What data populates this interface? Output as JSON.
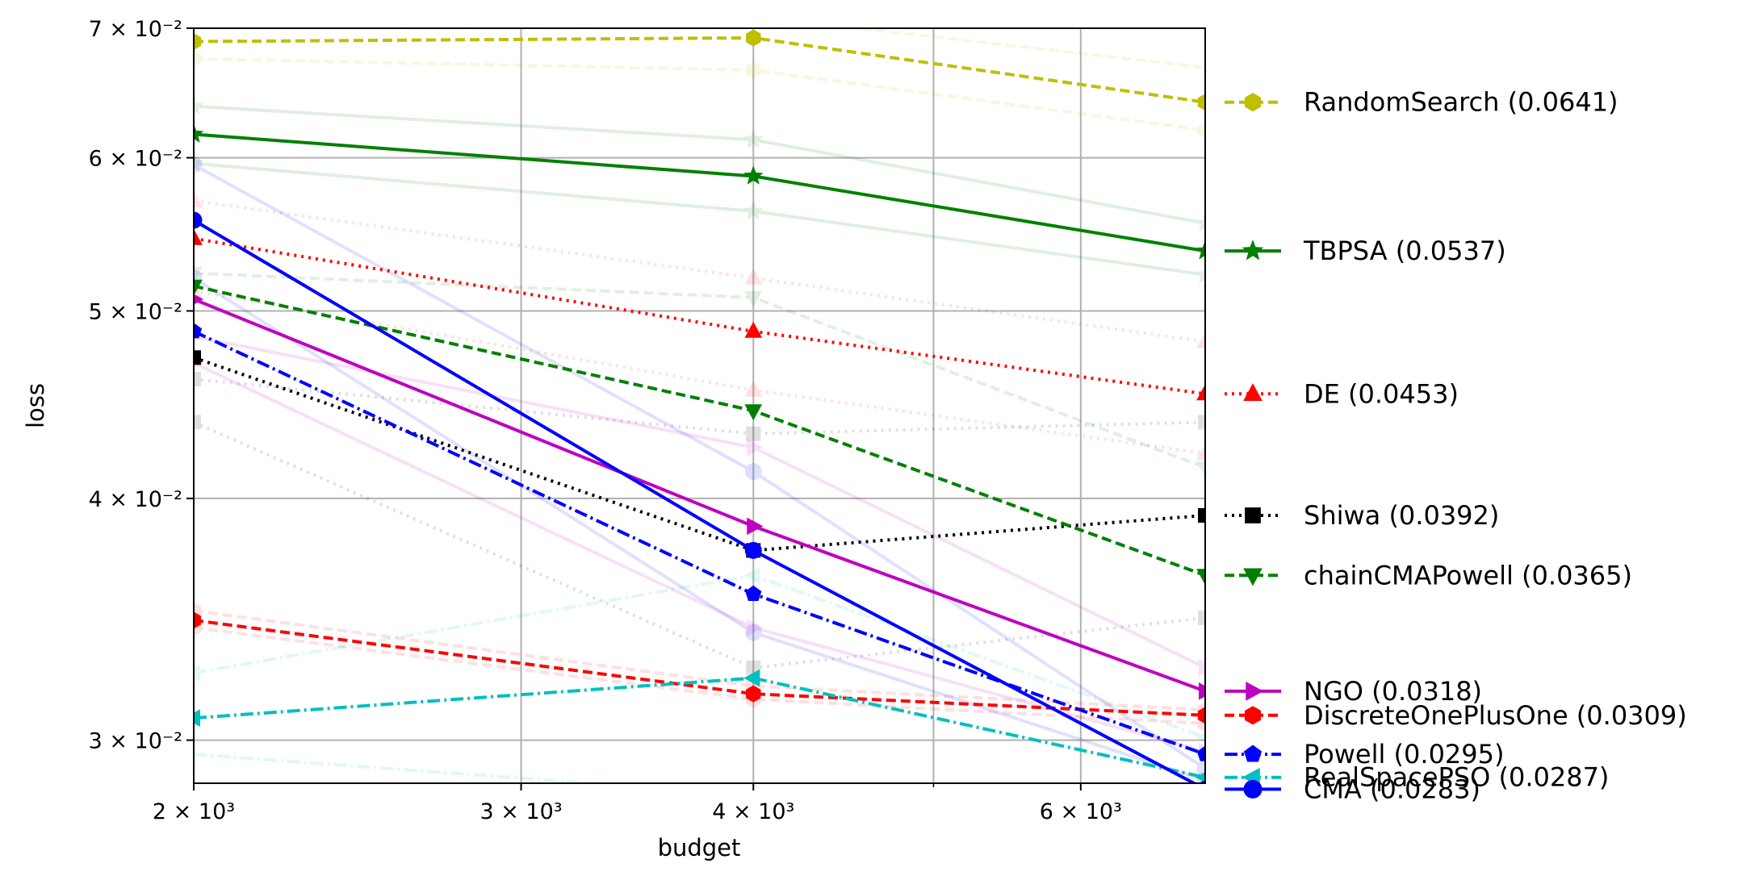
{
  "chart_data": {
    "type": "line",
    "xlabel": "budget",
    "ylabel": "loss",
    "xscale": "log",
    "yscale": "log",
    "xlim": [
      2000,
      7000
    ],
    "ylim": [
      0.0285,
      0.07
    ],
    "grid": true,
    "legend_position": "right",
    "x": [
      2000,
      4000,
      7000
    ],
    "x_ticks": [
      {
        "value": 2000,
        "label": "2 × 10³"
      },
      {
        "value": 3000,
        "label": "3 × 10³"
      },
      {
        "value": 4000,
        "label": "4 × 10³"
      },
      {
        "value": 6000,
        "label": "6 × 10³"
      }
    ],
    "x_minor_ticks": [
      5000
    ],
    "y_ticks": [
      {
        "value": 0.03,
        "label": "3 × 10⁻²"
      },
      {
        "value": 0.04,
        "label": "4 × 10⁻²"
      },
      {
        "value": 0.05,
        "label": "5 × 10⁻²"
      },
      {
        "value": 0.06,
        "label": "6 × 10⁻²"
      },
      {
        "value": 0.07,
        "label": "7 × 10⁻²"
      }
    ],
    "series": [
      {
        "name": "RandomSearch (0.0641)",
        "color": "#bfbf00",
        "dash": "dashed",
        "marker": "hexagon",
        "values": [
          0.0689,
          0.0692,
          0.0641
        ]
      },
      {
        "name": "TBPSA (0.0537)",
        "color": "#008000",
        "dash": "solid",
        "marker": "star",
        "values": [
          0.0617,
          0.0587,
          0.0537
        ]
      },
      {
        "name": "DE (0.0453)",
        "color": "#ff0000",
        "dash": "dotted",
        "marker": "triangle-up",
        "values": [
          0.0545,
          0.0488,
          0.0453
        ]
      },
      {
        "name": "Shiwa (0.0392)",
        "color": "#000000",
        "dash": "dotted",
        "marker": "square",
        "values": [
          0.0473,
          0.0376,
          0.0392
        ]
      },
      {
        "name": "chainCMAPowell (0.0365)",
        "color": "#008000",
        "dash": "dashed",
        "marker": "triangle-down",
        "values": [
          0.0515,
          0.0444,
          0.0365
        ]
      },
      {
        "name": "NGO (0.0318)",
        "color": "#bf00bf",
        "dash": "solid",
        "marker": "triangle-right",
        "values": [
          0.0507,
          0.0387,
          0.0318
        ]
      },
      {
        "name": "DiscreteOnePlusOne (0.0309)",
        "color": "#ff0000",
        "dash": "dashed",
        "marker": "hexagon",
        "values": [
          0.0346,
          0.0317,
          0.0309
        ]
      },
      {
        "name": "Powell (0.0295)",
        "color": "#0000ff",
        "dash": "dashdot",
        "marker": "pentagon",
        "values": [
          0.0488,
          0.0357,
          0.0295
        ]
      },
      {
        "name": "RealSpacePSO (0.0287)",
        "color": "#00bfbf",
        "dash": "dashdot",
        "marker": "triangle-left",
        "values": [
          0.0308,
          0.0323,
          0.0287
        ]
      },
      {
        "name": "CMA (0.0283)",
        "color": "#0000ff",
        "dash": "solid",
        "marker": "circle",
        "values": [
          0.0557,
          0.0376,
          0.0283
        ]
      }
    ],
    "faint_series": [
      {
        "color": "#bfbf00",
        "dash": "dashed",
        "marker": "hexagon",
        "values": [
          0.0675,
          0.0666,
          0.062
        ]
      },
      {
        "color": "#bfbf00",
        "dash": "dashed",
        "marker": "none",
        "values": [
          0.0712,
          0.071,
          0.0668
        ]
      },
      {
        "color": "#008000",
        "dash": "solid",
        "marker": "star",
        "values": [
          0.0638,
          0.0613,
          0.0555
        ]
      },
      {
        "color": "#008000",
        "dash": "solid",
        "marker": "star",
        "values": [
          0.0596,
          0.0563,
          0.0522
        ]
      },
      {
        "color": "#ff0000",
        "dash": "dotted",
        "marker": "triangle-up",
        "values": [
          0.057,
          0.052,
          0.0482
        ]
      },
      {
        "color": "#ff0000",
        "dash": "dotted",
        "marker": "triangle-up",
        "values": [
          0.0512,
          0.0455,
          0.0422
        ]
      },
      {
        "color": "#008000",
        "dash": "dashed",
        "marker": "triangle-down",
        "values": [
          0.0523,
          0.0508,
          0.0415
        ]
      },
      {
        "color": "#000000",
        "dash": "dotted",
        "marker": "square",
        "values": [
          0.0461,
          0.0432,
          0.0438
        ]
      },
      {
        "color": "#000000",
        "dash": "dotted",
        "marker": "square",
        "values": [
          0.0438,
          0.0327,
          0.0347
        ]
      },
      {
        "color": "#bf00bf",
        "dash": "solid",
        "marker": "triangle-right",
        "values": [
          0.047,
          0.0343,
          0.0296
        ]
      },
      {
        "color": "#bf00bf",
        "dash": "solid",
        "marker": "triangle-right",
        "values": [
          0.0485,
          0.0425,
          0.0327
        ]
      },
      {
        "color": "#ff0000",
        "dash": "dashed",
        "marker": "hexagon",
        "values": [
          0.035,
          0.032,
          0.0311
        ]
      },
      {
        "color": "#ff0000",
        "dash": "dashed",
        "marker": "hexagon",
        "values": [
          0.0343,
          0.0315,
          0.0306
        ]
      },
      {
        "color": "#0000ff",
        "dash": "solid",
        "marker": "circle",
        "values": [
          0.0595,
          0.0413,
          0.029
        ]
      },
      {
        "color": "#0000ff",
        "dash": "solid",
        "marker": "circle",
        "values": [
          0.052,
          0.0341,
          0.0286
        ]
      },
      {
        "color": "#00bfbf",
        "dash": "dashdot",
        "marker": "triangle-left",
        "values": [
          0.0325,
          0.0365,
          0.0301
        ]
      },
      {
        "color": "#00bfbf",
        "dash": "dashdot",
        "marker": "none",
        "values": [
          0.0295,
          0.0281,
          0.027
        ]
      }
    ]
  }
}
